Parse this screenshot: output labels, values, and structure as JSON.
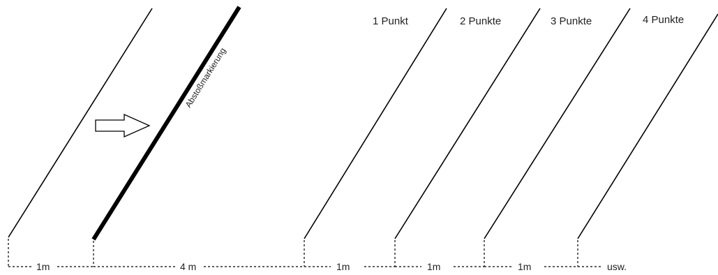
{
  "diagram": {
    "abstoss_label": "Abstoßmarkierung",
    "point_labels": [
      "1 Punkt",
      "2 Punkte",
      "3 Punkte",
      "4 Punkte"
    ],
    "distance_labels": [
      "1m",
      "4 m",
      "1m",
      "1m",
      "1m",
      "usw."
    ],
    "colors": {
      "line": "#000000",
      "text": "#222222",
      "arrow_fill": "#ffffff"
    },
    "icons": {
      "direction": "right-arrow-icon"
    }
  }
}
